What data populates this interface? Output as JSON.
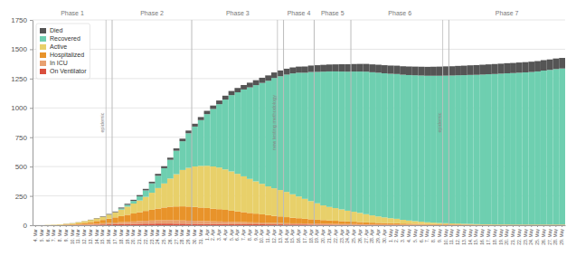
{
  "chart_data": {
    "type": "bar",
    "stacked": true,
    "grid": true,
    "legend": "upper left",
    "categories": [
      "4. Mar",
      "5. Mar",
      "6. Mar",
      "7. Mar",
      "8. Mar",
      "9. Mar",
      "10. Mar",
      "11. Mar",
      "12. Mar",
      "13. Mar",
      "14. Mar",
      "15. Mar",
      "16. Mar",
      "17. Mar",
      "18. Mar",
      "19. Mar",
      "20. Mar",
      "21. Mar",
      "22. Mar",
      "23. Mar",
      "24. Mar",
      "25. Mar",
      "26. Mar",
      "27. Mar",
      "28. Mar",
      "29. Mar",
      "30. Mar",
      "31. Mar",
      "1. Apr",
      "2. Apr",
      "3. Apr",
      "4. Apr",
      "5. Apr",
      "6. Apr",
      "7. Apr",
      "8. Apr",
      "9. Apr",
      "10. Apr",
      "11. Apr",
      "12. Apr",
      "13. Apr",
      "14. Apr",
      "15. Apr",
      "16. Apr",
      "17. Apr",
      "18. Apr",
      "19. Apr",
      "20. Apr",
      "21. Apr",
      "22. Apr",
      "23. Apr",
      "24. Apr",
      "25. Apr",
      "26. Apr",
      "27. Apr",
      "28. Apr",
      "29. Apr",
      "30. Apr",
      "1. May",
      "2. May",
      "3. May",
      "4. May",
      "5. May",
      "6. May",
      "7. May",
      "8. May",
      "9. May",
      "10. May",
      "11. May",
      "12. May",
      "13. May",
      "14. May",
      "15. May",
      "16. May",
      "17. May",
      "18. May",
      "19. May",
      "20. May",
      "21. May",
      "22. May",
      "23. May",
      "24. May",
      "25. May",
      "26. May",
      "27. May",
      "28. May",
      "29. May"
    ],
    "series": [
      {
        "name": "On Ventilator",
        "color": "#d94f3d",
        "values": [
          0,
          0,
          0,
          0,
          0,
          1,
          1,
          2,
          3,
          4,
          5,
          6,
          7,
          8,
          9,
          10,
          11,
          12,
          13,
          13,
          14,
          14,
          14,
          13,
          13,
          12,
          12,
          11,
          11,
          10,
          10,
          10,
          9,
          9,
          9,
          8,
          8,
          8,
          7,
          7,
          7,
          6,
          6,
          6,
          6,
          5,
          5,
          5,
          5,
          4,
          4,
          4,
          4,
          4,
          3,
          3,
          3,
          3,
          3,
          3,
          2,
          2,
          2,
          2,
          2,
          2,
          2,
          2,
          2,
          2,
          1,
          1,
          1,
          1,
          1,
          1,
          1,
          1,
          1,
          1,
          1,
          1,
          1,
          1,
          1,
          1,
          1
        ]
      },
      {
        "name": "In ICU",
        "color": "#e8a070",
        "values": [
          0,
          0,
          0,
          0,
          1,
          2,
          3,
          4,
          5,
          7,
          9,
          11,
          13,
          15,
          17,
          19,
          21,
          23,
          25,
          27,
          28,
          29,
          30,
          29,
          28,
          27,
          26,
          25,
          24,
          23,
          22,
          21,
          20,
          19,
          18,
          17,
          16,
          15,
          14,
          13,
          12,
          11,
          10,
          10,
          9,
          9,
          8,
          8,
          7,
          7,
          6,
          6,
          6,
          5,
          5,
          5,
          4,
          4,
          4,
          4,
          3,
          3,
          3,
          3,
          2,
          2,
          2,
          2,
          2,
          2,
          2,
          2,
          1,
          1,
          1,
          1,
          1,
          1,
          1,
          1,
          1,
          1,
          1,
          1,
          1,
          1,
          1
        ]
      },
      {
        "name": "Hospitalized",
        "color": "#e8932a",
        "values": [
          0,
          0,
          0,
          1,
          2,
          3,
          5,
          8,
          12,
          16,
          22,
          28,
          36,
          44,
          52,
          60,
          68,
          76,
          84,
          92,
          100,
          108,
          114,
          118,
          120,
          120,
          118,
          115,
          112,
          108,
          105,
          100,
          95,
          90,
          85,
          80,
          75,
          70,
          65,
          60,
          56,
          52,
          48,
          44,
          40,
          37,
          34,
          31,
          29,
          27,
          25,
          22,
          20,
          18,
          16,
          14,
          13,
          12,
          11,
          10,
          9,
          8,
          7,
          6,
          5,
          5,
          4,
          4,
          3,
          3,
          3,
          3,
          2,
          2,
          2,
          2,
          2,
          2,
          2,
          2,
          2,
          2,
          2,
          2,
          2,
          2,
          2
        ]
      },
      {
        "name": "Active",
        "color": "#e8d06a",
        "values": [
          0,
          0,
          2,
          3,
          5,
          6,
          8,
          11,
          14,
          18,
          22,
          28,
          35,
          44,
          55,
          70,
          85,
          100,
          120,
          145,
          175,
          205,
          240,
          275,
          310,
          330,
          345,
          355,
          360,
          360,
          355,
          345,
          335,
          320,
          305,
          290,
          275,
          260,
          245,
          235,
          225,
          215,
          200,
          185,
          170,
          155,
          140,
          125,
          115,
          108,
          100,
          92,
          85,
          78,
          70,
          62,
          55,
          48,
          42,
          38,
          32,
          27,
          23,
          19,
          16,
          13,
          11,
          9,
          8,
          7,
          6,
          5,
          5,
          4,
          4,
          3,
          3,
          3,
          2,
          2,
          2,
          2,
          2,
          2,
          2,
          2,
          2
        ]
      },
      {
        "name": "Recovered",
        "color": "#6ecfb0",
        "values": [
          0,
          0,
          0,
          0,
          0,
          0,
          0,
          0,
          0,
          0,
          0,
          0,
          0,
          0,
          10,
          15,
          22,
          35,
          55,
          80,
          105,
          130,
          160,
          200,
          245,
          295,
          340,
          390,
          440,
          490,
          540,
          595,
          650,
          695,
          740,
          780,
          820,
          860,
          900,
          940,
          970,
          1000,
          1030,
          1055,
          1075,
          1100,
          1120,
          1140,
          1155,
          1165,
          1175,
          1185,
          1195,
          1205,
          1215,
          1220,
          1225,
          1228,
          1231,
          1234,
          1237,
          1240,
          1243,
          1246,
          1249,
          1252,
          1255,
          1258,
          1261,
          1264,
          1267,
          1270,
          1273,
          1276,
          1279,
          1282,
          1285,
          1288,
          1291,
          1294,
          1297,
          1300,
          1305,
          1312,
          1318,
          1325,
          1330
        ]
      },
      {
        "name": "Died",
        "color": "#555555",
        "values": [
          0,
          0,
          0,
          0,
          0,
          1,
          1,
          1,
          1,
          2,
          3,
          4,
          5,
          6,
          8,
          9,
          10,
          11,
          13,
          14,
          16,
          17,
          18,
          20,
          22,
          23,
          24,
          26,
          28,
          29,
          31,
          33,
          35,
          37,
          38,
          40,
          42,
          44,
          46,
          47,
          49,
          50,
          51,
          52,
          53,
          55,
          57,
          58,
          59,
          60,
          62,
          63,
          64,
          65,
          66,
          67,
          68,
          69,
          70,
          71,
          72,
          73,
          74,
          75,
          76,
          77,
          78,
          79,
          79,
          80,
          81,
          82,
          83,
          84,
          84,
          85,
          85,
          86,
          86,
          87,
          87,
          88,
          88,
          89,
          89,
          90,
          90
        ]
      }
    ],
    "ylim": [
      0,
      1750
    ],
    "yticks": [
      0,
      250,
      500,
      750,
      1000,
      1250,
      1500,
      1750
    ],
    "annotations": [
      {
        "text": "Phase 1",
        "from": "4. Mar",
        "to": "16. Mar"
      },
      {
        "text": "Phase 2",
        "from": "17. Mar",
        "to": "29. Mar"
      },
      {
        "text": "Phase 3",
        "from": "30. Mar",
        "to": "13. Apr"
      },
      {
        "text": "Phase 4",
        "from": "14. Apr",
        "to": "18. Apr"
      },
      {
        "text": "Phase 5",
        "from": "19. Apr",
        "to": "24. Apr"
      },
      {
        "text": "Phase 6",
        "from": "25. Apr",
        "to": "10. May"
      },
      {
        "text": "Phase 7",
        "from": "11. May",
        "to": "29. May"
      },
      {
        "text": "epidemic",
        "at": "16. Mar"
      },
      {
        "text": "new testing methodology",
        "at": "13. Apr"
      },
      {
        "text": "epidemic",
        "at": "10. May"
      }
    ]
  }
}
